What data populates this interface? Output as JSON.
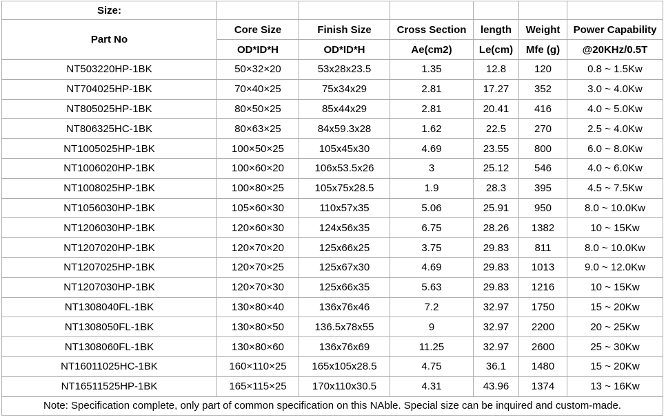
{
  "sheet_title": "Size:",
  "table": {
    "header": {
      "part_no": "Part No",
      "top": [
        "Core Size",
        "Finish Size",
        "Cross Section",
        "length",
        "Weight",
        "Power Capability"
      ],
      "sub": [
        "OD*ID*H",
        "OD*ID*H",
        "Ae(cm2)",
        "Le(cm)",
        "Mfe (g)",
        "@20KHz/0.5T"
      ]
    },
    "rows": [
      [
        "NT503220HP-1BK",
        "50×32×20",
        "53x28x23.5",
        "1.35",
        "12.8",
        "120",
        "0.8 ~ 1.5Kw"
      ],
      [
        "NT704025HP-1BK",
        "70×40×25",
        "75x34x29",
        "2.81",
        "17.27",
        "352",
        "3.0 ~ 4.0Kw"
      ],
      [
        "NT805025HP-1BK",
        "80×50×25",
        "85x44x29",
        "2.81",
        "20.41",
        "416",
        "4.0 ~ 5.0Kw"
      ],
      [
        "NT806325HC-1BK",
        "80×63×25",
        "84x59.3x28",
        "1.62",
        "22.5",
        "270",
        "2.5 ~ 4.0Kw"
      ],
      [
        "NT1005025HP-1BK",
        "100×50×25",
        "105x45x30",
        "4.69",
        "23.55",
        "800",
        "6.0 ~ 8.0Kw"
      ],
      [
        "NT1006020HP-1BK",
        "100×60×20",
        "106x53.5x26",
        "3",
        "25.12",
        "546",
        "4.0 ~ 6.0Kw"
      ],
      [
        "NT1008025HP-1BK",
        "100×80×25",
        "105x75x28.5",
        "1.9",
        "28.3",
        "395",
        "4.5 ~ 7.5Kw"
      ],
      [
        "NT1056030HP-1BK",
        "105×60×30",
        "110x57x35",
        "5.06",
        "25.91",
        "950",
        "8.0 ~ 10.0Kw"
      ],
      [
        "NT1206030HP-1BK",
        "120×60×30",
        "124x56x35",
        "6.75",
        "28.26",
        "1382",
        "10 ~ 15Kw"
      ],
      [
        "NT1207020HP-1BK",
        "120×70×20",
        "125x66x25",
        "3.75",
        "29.83",
        "811",
        "8.0 ~ 10.0Kw"
      ],
      [
        "NT1207025HP-1BK",
        "120×70×25",
        "125x67x30",
        "4.69",
        "29.83",
        "1013",
        "9.0 ~ 12.0Kw"
      ],
      [
        "NT1207030HP-1BK",
        "120×70×30",
        "125x66x35",
        "5.63",
        "29.83",
        "1216",
        "10 ~ 15Kw"
      ],
      [
        "NT1308040FL-1BK",
        "130×80×40",
        "136x76x46",
        "7.2",
        "32.97",
        "1750",
        "15 ~ 20Kw"
      ],
      [
        "NT1308050FL-1BK",
        "130×80×50",
        "136.5x78x55",
        "9",
        "32.97",
        "2200",
        "20 ~ 25Kw"
      ],
      [
        "NT1308060FL-1BK",
        "130×80×60",
        "136x76x69",
        "11.25",
        "32.97",
        "2600",
        "25 ~ 30Kw"
      ],
      [
        "NT16011025HC-1BK",
        "160×110×25",
        "165x105x28.5",
        "4.75",
        "36.1",
        "1480",
        "15 ~ 20Kw"
      ],
      [
        "NT16511525HP-1BK",
        "165×115×25",
        "170x110x30.5",
        "4.31",
        "43.96",
        "1374",
        "13 ~ 16Kw"
      ]
    ]
  },
  "note": "Note: Specification complete, only part of common specification on this NAble. Special size can be inquired and custom-made."
}
